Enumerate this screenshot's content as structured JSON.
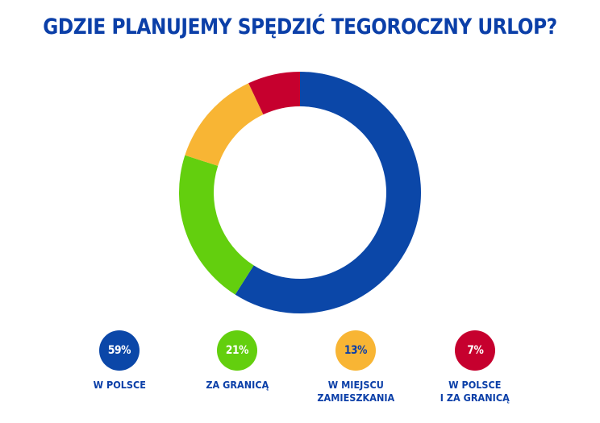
{
  "title": "GDZIE PLANUJEMY SPĘDZIĆ TEGOROCZNY URLOP?",
  "chart_data": {
    "type": "pie",
    "title": "GDZIE PLANUJEMY SPĘDZIĆ TEGOROCZNY URLOP?",
    "donut": true,
    "unit": "%",
    "categories": [
      "W POLSCE",
      "ZA GRANICĄ",
      "W MIEJSCU ZAMIESZKANIA",
      "W POLSCE I ZA GRANICĄ"
    ],
    "values": [
      59,
      21,
      13,
      7
    ],
    "colors": [
      "#0b47a8",
      "#63cf0e",
      "#f8b534",
      "#c6002e"
    ],
    "start": "12 o'clock, clockwise",
    "legend_position": "bottom"
  },
  "legend": [
    {
      "value_label": "59%",
      "label": "W POLSCE",
      "color": "#0b47a8",
      "text_color": "#ffffff"
    },
    {
      "value_label": "21%",
      "label": "ZA GRANICĄ",
      "color": "#63cf0e",
      "text_color": "#ffffff"
    },
    {
      "value_label": "13%",
      "label": "W MIEJSCU\nZAMIESZKANIA",
      "color": "#f8b534",
      "text_color": "#0b3fa8"
    },
    {
      "value_label": "7%",
      "label": "W POLSCE\nI ZA GRANICĄ",
      "color": "#c6002e",
      "text_color": "#ffffff"
    }
  ]
}
